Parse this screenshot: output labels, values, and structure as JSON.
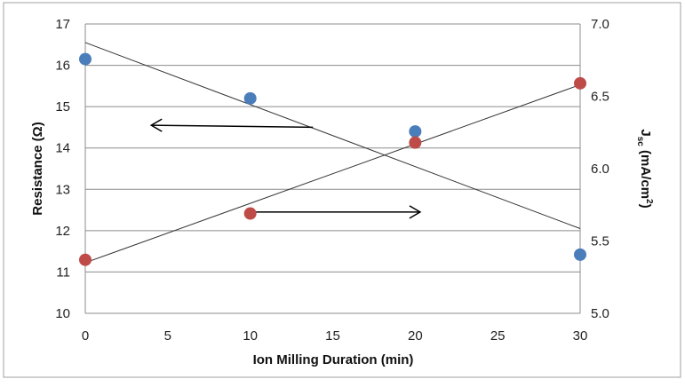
{
  "chart_data": {
    "type": "scatter",
    "xlabel": "Ion Milling Duration (min)",
    "ylabel_left": "Resistance (Ω)",
    "ylabel_right": {
      "main": "J",
      "sub": "sc",
      "unit_prefix": " (mA/cm",
      "sup": "2",
      "unit_suffix": ")"
    },
    "xlim": [
      0,
      30
    ],
    "ylim_left": [
      10,
      17
    ],
    "ylim_right": [
      5.0,
      7.0
    ],
    "x_ticks": [
      "0",
      "5",
      "10",
      "15",
      "20",
      "25",
      "30"
    ],
    "y_left_ticks": [
      "10",
      "11",
      "12",
      "13",
      "14",
      "15",
      "16",
      "17"
    ],
    "y_right_ticks": [
      "5.0",
      "5.5",
      "6.0",
      "6.5",
      "7.0"
    ],
    "grid": true,
    "series": [
      {
        "axis": "left",
        "color": "#4a7ebb",
        "points": [
          [
            0,
            16.15
          ],
          [
            10,
            15.2
          ],
          [
            20,
            14.4
          ],
          [
            30,
            11.42
          ]
        ],
        "trendline": [
          [
            0,
            16.55
          ],
          [
            30,
            12.05
          ]
        ]
      },
      {
        "axis": "right",
        "color": "#be4b48",
        "points": [
          [
            0,
            5.37
          ],
          [
            10,
            5.69
          ],
          [
            20,
            6.18
          ],
          [
            30,
            6.59
          ]
        ],
        "trendline": [
          [
            0,
            5.35
          ],
          [
            30,
            6.58
          ]
        ]
      }
    ],
    "annotations": [
      {
        "type": "arrow",
        "direction": "left",
        "from": [
          13.8,
          14.5
        ],
        "to": [
          4,
          14.55
        ]
      },
      {
        "type": "arrow",
        "direction": "right",
        "from": [
          10,
          12.45
        ],
        "to": [
          20.3,
          12.45
        ]
      }
    ]
  }
}
